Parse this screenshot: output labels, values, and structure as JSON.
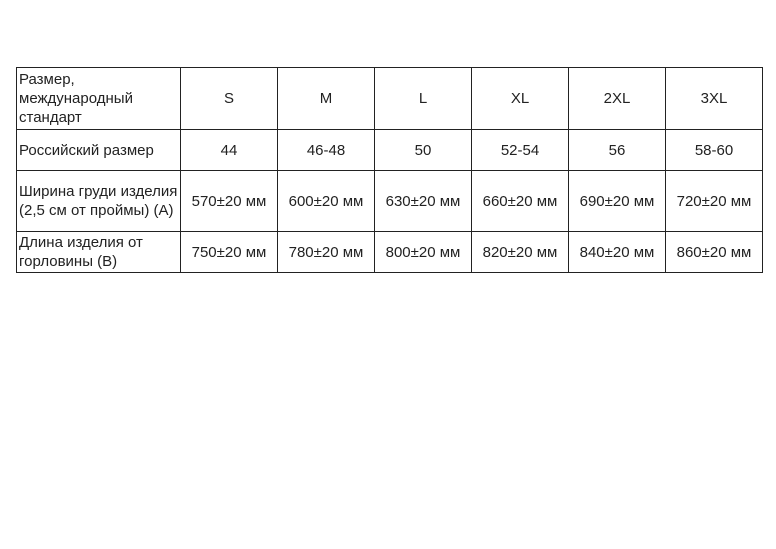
{
  "table": {
    "rows": [
      {
        "label": "Размер, международный стандарт",
        "cells": [
          "S",
          "M",
          "L",
          "XL",
          "2XL",
          "3XL"
        ]
      },
      {
        "label": "Российский размер",
        "cells": [
          "44",
          "46-48",
          "50",
          "52-54",
          "56",
          "58-60"
        ]
      },
      {
        "label": "Ширина груди изделия (2,5 см от проймы) (А)",
        "cells": [
          "570±20 мм",
          "600±20 мм",
          "630±20 мм",
          "660±20 мм",
          "690±20 мм",
          "720±20 мм"
        ]
      },
      {
        "label": "Длина изделия от горловины (В)",
        "cells": [
          "750±20 мм",
          "780±20 мм",
          "800±20 мм",
          "820±20 мм",
          "840±20 мм",
          "860±20 мм"
        ]
      }
    ]
  }
}
